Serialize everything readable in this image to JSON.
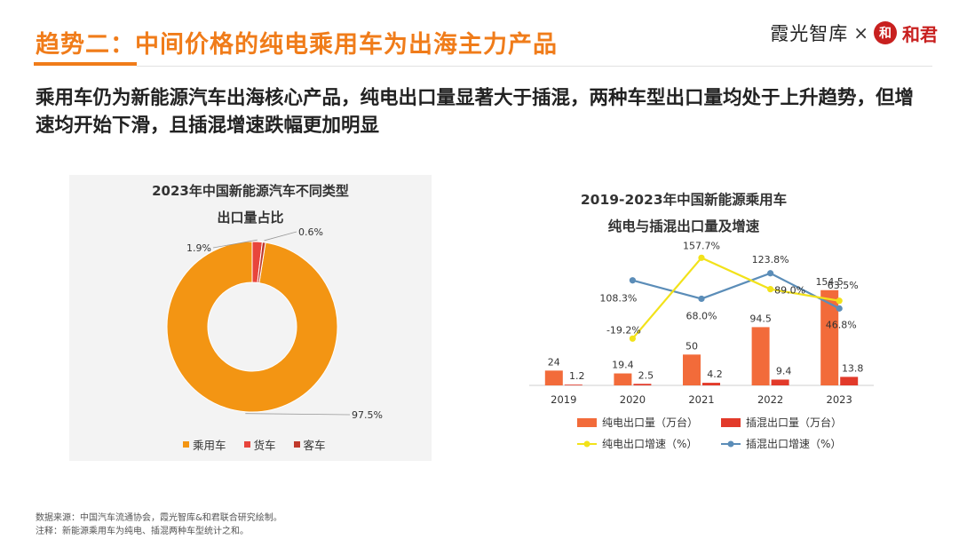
{
  "header": {
    "title": "趋势二：中间价格的纯电乘用车为出海主力产品",
    "brand_left": "霞光智库",
    "brand_sep": "×",
    "brand_seal": "和",
    "brand_right": "和君"
  },
  "subtitle": "乘用车仍为新能源汽车出海核心产品，纯电出口量显著大于插混，两种车型出口量均处于上升趋势，但增速均开始下滑，且插混增速跌幅更加明显",
  "footer": {
    "source": "数据来源：中国汽车流通协会，霞光智库&和君联合研究绘制。",
    "note": "注释：新能源乘用车为纯电、插混两种车型统计之和。"
  },
  "chart_data": [
    {
      "type": "pie",
      "title_line1": "2023年中国新能源汽车不同类型",
      "title_line2": "出口量占比",
      "labels": [
        "乘用车",
        "货车",
        "客车"
      ],
      "values": [
        97.5,
        1.9,
        0.6
      ],
      "value_labels": [
        "97.5%",
        "1.9%",
        "0.6%"
      ],
      "colors": [
        "#f39513",
        "#e8453c",
        "#c0392b"
      ],
      "legend_placement": "bottom"
    },
    {
      "type": "bar",
      "title_line1": "2019-2023年中国新能源乘用车",
      "title_line2": "纯电与插混出口量及增速",
      "categories": [
        "2019",
        "2020",
        "2021",
        "2022",
        "2023"
      ],
      "series": [
        {
          "name": "纯电出口量（万台）",
          "kind": "bar",
          "values": [
            24,
            19.4,
            50,
            94.5,
            154.5
          ],
          "labels": [
            "24",
            "19.4",
            "50",
            "94.5",
            "154.5"
          ],
          "color": "#f26b3a"
        },
        {
          "name": "插混出口量（万台）",
          "kind": "bar",
          "values": [
            1.2,
            2.5,
            4.2,
            9.4,
            13.8
          ],
          "labels": [
            "1.2",
            "2.5",
            "4.2",
            "9.4",
            "13.8"
          ],
          "color": "#e23a2a"
        },
        {
          "name": "纯电出口增速（%）",
          "kind": "line",
          "values": [
            null,
            -19.2,
            157.7,
            89.0,
            63.5
          ],
          "labels": [
            "",
            "-19.2%",
            "157.7%",
            "89.0%",
            "63.5%"
          ],
          "color": "#f2e21a"
        },
        {
          "name": "插混出口增速（%）",
          "kind": "line",
          "values": [
            null,
            108.3,
            68.0,
            123.8,
            46.8
          ],
          "labels": [
            "",
            "108.3%",
            "68.0%",
            "123.8%",
            "46.8%"
          ],
          "color": "#5b8db8"
        }
      ],
      "legend_placement": "bottom"
    }
  ]
}
